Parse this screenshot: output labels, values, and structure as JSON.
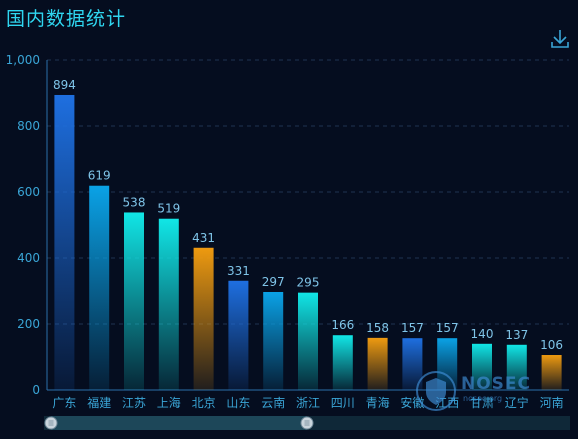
{
  "title": "国内数据统计",
  "toolbar": {
    "download_icon": "download-icon"
  },
  "watermark": {
    "brand": "NOSEC",
    "sub": "nosec.org"
  },
  "colors": {
    "background": "#050d1f",
    "title": "#2fd6f0",
    "axis_label": "#3aa5d6",
    "value_label": "#7fc4e8",
    "grid": "#1e3452",
    "blue": "#1e6fe0",
    "sky": "#0aa2e6",
    "cyan": "#11e6e6",
    "orange": "#ee9a10",
    "zoom_track": "#0f2838",
    "zoom_fill": "#1d4759"
  },
  "chart_data": {
    "type": "bar",
    "title": "国内数据统计",
    "categories": [
      "广东",
      "福建",
      "江苏",
      "上海",
      "北京",
      "山东",
      "云南",
      "浙江",
      "四川",
      "青海",
      "安徽",
      "江西",
      "甘肃",
      "辽宁",
      "河南"
    ],
    "values": [
      894,
      619,
      538,
      519,
      431,
      331,
      297,
      295,
      166,
      158,
      157,
      157,
      140,
      137,
      106
    ],
    "bar_colors": [
      "blue",
      "sky",
      "cyan",
      "cyan",
      "orange",
      "blue",
      "sky",
      "cyan",
      "cyan",
      "orange",
      "blue",
      "sky",
      "cyan",
      "cyan",
      "orange"
    ],
    "ylim": [
      0,
      1000
    ],
    "yticks": [
      "0",
      "200",
      "400",
      "600",
      "800",
      "1,000"
    ],
    "ytick_values": [
      0,
      200,
      400,
      600,
      800,
      1000
    ],
    "grid": true,
    "data_labels": true,
    "data_zoom": {
      "start": 0,
      "end": 0.5
    }
  }
}
